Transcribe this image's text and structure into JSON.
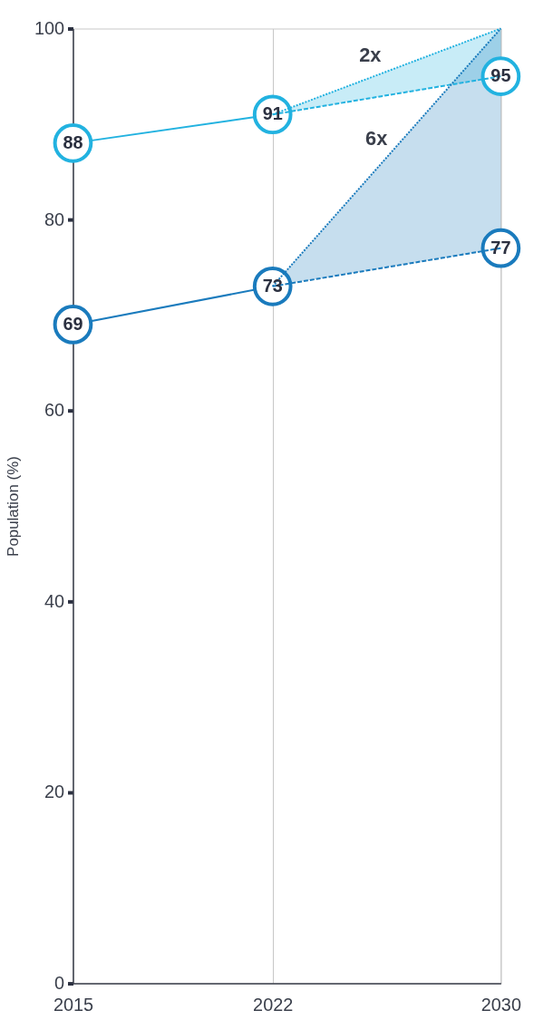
{
  "chart_data": {
    "type": "line",
    "ylabel": "Population (%)",
    "xlim": [
      2015,
      2030
    ],
    "xticks": [
      2015,
      2022,
      2030
    ],
    "ylim": [
      0,
      100
    ],
    "yticks": [
      0,
      20,
      40,
      60,
      80,
      100
    ],
    "grid": "x",
    "marker": "circle",
    "series": [
      {
        "color": "#22b2e0",
        "x": [
          2015,
          2022
        ],
        "values": [
          88,
          91
        ],
        "line_style": "solid",
        "value_labels": [
          "88",
          "91"
        ]
      },
      {
        "color": "#22b2e0",
        "x": [
          2022,
          2030
        ],
        "values": [
          91,
          95
        ],
        "line_style": "dashed",
        "lower": [
          91,
          95
        ],
        "upper": [
          91,
          100
        ],
        "value_labels": [
          null,
          "95"
        ]
      },
      {
        "color": "#22b2e0",
        "x": [
          2022,
          2030
        ],
        "values": [
          91,
          100
        ],
        "line_style": "dotted",
        "marker": "none"
      },
      {
        "color": "#1a7bbd",
        "x": [
          2015,
          2022
        ],
        "values": [
          69,
          73
        ],
        "line_style": "solid",
        "value_labels": [
          "69",
          "73"
        ]
      },
      {
        "color": "#1a7bbd",
        "x": [
          2022,
          2030
        ],
        "values": [
          73,
          77
        ],
        "line_style": "dashed",
        "lower": [
          73,
          77
        ],
        "upper": [
          73,
          100
        ],
        "value_labels": [
          null,
          "77"
        ]
      },
      {
        "color": "#1a7bbd",
        "x": [
          2022,
          2030
        ],
        "values": [
          73,
          100
        ],
        "line_style": "dotted",
        "marker": "none"
      }
    ],
    "annotations": [
      "2x",
      "6x"
    ]
  }
}
